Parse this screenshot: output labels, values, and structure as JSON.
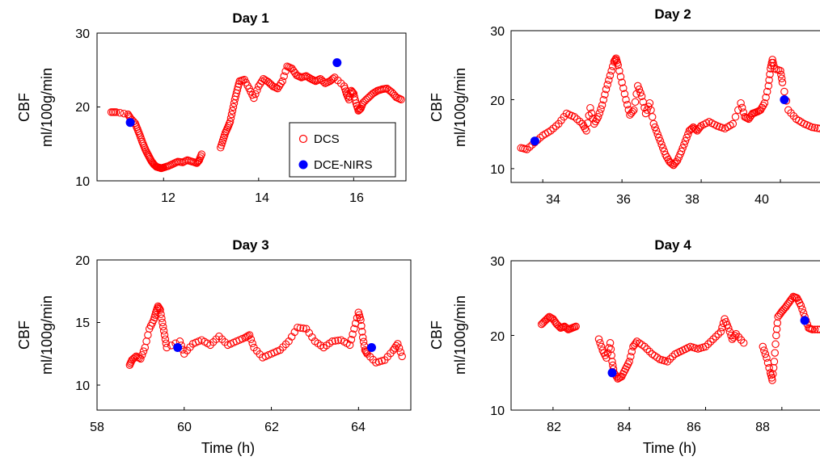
{
  "chart_data": [
    {
      "type": "scatter",
      "title": "Day 1",
      "ylabel": "CBF",
      "ylabel2": "ml/100g/min",
      "xlabel": "",
      "xlim": [
        10.6,
        17.1
      ],
      "ylim": [
        10,
        30
      ],
      "xticks": [
        "12",
        "14",
        "16"
      ],
      "yticks": [
        "10",
        "20",
        "30"
      ],
      "legend": {
        "position": "inside-lower-right",
        "entries": [
          "DCS",
          "DCE-NIRS"
        ]
      },
      "series": [
        {
          "name": "DCS",
          "marker": "open-circle",
          "color": "#ff0000",
          "x": [
            10.9,
            11.0,
            11.25,
            11.3,
            11.4,
            11.45,
            11.5,
            11.55,
            11.6,
            11.65,
            11.7,
            11.75,
            11.8,
            11.85,
            11.9,
            11.95,
            12.0,
            12.1,
            12.2,
            12.3,
            12.4,
            12.5,
            12.6,
            12.7,
            12.75,
            12.8,
            13.2,
            13.25,
            13.3,
            13.35,
            13.4,
            13.45,
            13.5,
            13.55,
            13.6,
            13.7,
            13.8,
            13.9,
            14.0,
            14.1,
            14.2,
            14.3,
            14.4,
            14.5,
            14.6,
            14.7,
            14.8,
            14.9,
            15.0,
            15.1,
            15.2,
            15.3,
            15.4,
            15.5,
            15.6,
            15.8,
            15.85,
            15.9,
            15.95,
            16.0,
            16.05,
            16.1,
            16.15,
            16.2,
            16.3,
            16.4,
            16.5,
            16.6,
            16.7,
            16.8,
            16.9,
            17.0
          ],
          "y": [
            19.3,
            19.3,
            19.0,
            18.5,
            17.8,
            17.0,
            16.2,
            15.3,
            14.5,
            13.8,
            13.2,
            12.6,
            12.2,
            11.9,
            11.8,
            11.7,
            11.8,
            12.0,
            12.3,
            12.6,
            12.5,
            12.8,
            12.6,
            12.4,
            12.8,
            13.6,
            14.5,
            15.5,
            16.5,
            17.2,
            18.0,
            19.5,
            21.0,
            22.3,
            23.5,
            23.7,
            22.5,
            21.2,
            22.8,
            23.8,
            23.4,
            22.8,
            22.5,
            23.5,
            25.5,
            25.2,
            24.3,
            24.0,
            24.2,
            23.8,
            23.5,
            23.8,
            23.2,
            23.5,
            24.0,
            22.8,
            21.8,
            21.0,
            22.2,
            21.8,
            20.5,
            19.5,
            19.8,
            20.6,
            21.2,
            21.8,
            22.2,
            22.4,
            22.5,
            22.0,
            21.3,
            21.0
          ]
        },
        {
          "name": "DCE-NIRS",
          "marker": "filled-circle",
          "color": "#0000ff",
          "x": [
            11.3,
            15.65
          ],
          "y": [
            17.9,
            26.0
          ]
        }
      ]
    },
    {
      "type": "scatter",
      "title": "Day 2",
      "ylabel": "CBF",
      "ylabel2": "ml/100g/min",
      "xlabel": "",
      "xlim": [
        33.2,
        41.0
      ],
      "ylim": [
        8,
        30
      ],
      "xticks": [
        "34",
        "36",
        "38",
        "40"
      ],
      "yticks": [
        "10",
        "20",
        "30"
      ],
      "series": [
        {
          "name": "DCS",
          "marker": "open-circle",
          "color": "#ff0000",
          "x": [
            33.45,
            33.6,
            33.8,
            34.0,
            34.2,
            34.4,
            34.6,
            34.8,
            35.0,
            35.1,
            35.2,
            35.3,
            35.4,
            35.5,
            35.6,
            35.7,
            35.8,
            35.85,
            35.9,
            36.0,
            36.1,
            36.2,
            36.3,
            36.4,
            36.5,
            36.6,
            36.7,
            36.8,
            36.9,
            37.0,
            37.1,
            37.2,
            37.3,
            37.4,
            37.5,
            37.6,
            37.7,
            37.8,
            37.9,
            38.0,
            38.2,
            38.4,
            38.6,
            38.8,
            39.0,
            39.1,
            39.2,
            39.3,
            39.4,
            39.5,
            39.6,
            39.7,
            39.75,
            39.8,
            39.85,
            40.0,
            40.05,
            40.2,
            40.4,
            40.6,
            40.8,
            41.0
          ],
          "y": [
            13.0,
            12.8,
            13.8,
            14.8,
            15.5,
            16.5,
            18.0,
            17.5,
            16.5,
            15.5,
            18.8,
            16.5,
            17.5,
            19.2,
            21.5,
            23.5,
            25.5,
            26.0,
            25.0,
            22.5,
            20.0,
            17.8,
            18.5,
            22.0,
            20.5,
            18.0,
            19.5,
            16.5,
            15.0,
            13.5,
            12.0,
            11.0,
            10.5,
            11.2,
            12.5,
            14.0,
            15.5,
            16.0,
            15.5,
            16.2,
            16.8,
            16.2,
            15.8,
            16.5,
            19.5,
            17.5,
            17.2,
            18.0,
            18.2,
            18.5,
            19.5,
            22.0,
            24.5,
            25.8,
            24.5,
            24.2,
            22.5,
            18.5,
            17.2,
            16.5,
            16.0,
            15.8
          ]
        },
        {
          "name": "DCE-NIRS",
          "marker": "filled-circle",
          "color": "#0000ff",
          "x": [
            33.8,
            40.1
          ],
          "y": [
            14.0,
            20.0
          ]
        }
      ]
    },
    {
      "type": "scatter",
      "title": "Day 3",
      "ylabel": "CBF",
      "ylabel2": "ml/100g/min",
      "xlabel": "Time (h)",
      "xlim": [
        58,
        65.2
      ],
      "ylim": [
        8,
        20
      ],
      "xticks": [
        "58",
        "60",
        "62",
        "64"
      ],
      "yticks": [
        "10",
        "15",
        "20"
      ],
      "series": [
        {
          "name": "DCS",
          "marker": "open-circle",
          "color": "#ff0000",
          "x": [
            58.75,
            58.8,
            58.9,
            59.0,
            59.1,
            59.2,
            59.3,
            59.35,
            59.4,
            59.45,
            59.5,
            59.55,
            59.6,
            59.9,
            60.0,
            60.2,
            60.4,
            60.6,
            60.8,
            61.0,
            61.2,
            61.4,
            61.5,
            61.6,
            61.8,
            62.0,
            62.2,
            62.4,
            62.6,
            62.8,
            63.0,
            63.2,
            63.4,
            63.6,
            63.8,
            63.9,
            64.0,
            64.05,
            64.1,
            64.15,
            64.2,
            64.4,
            64.6,
            64.8,
            64.9,
            65.0
          ],
          "y": [
            11.6,
            12.0,
            12.3,
            12.1,
            13.0,
            14.5,
            15.2,
            15.8,
            16.3,
            16.0,
            15.0,
            14.0,
            13.0,
            13.5,
            12.5,
            13.3,
            13.6,
            13.2,
            13.9,
            13.2,
            13.5,
            13.8,
            14.0,
            13.0,
            12.2,
            12.5,
            12.8,
            13.5,
            14.6,
            14.5,
            13.5,
            13.0,
            13.5,
            13.6,
            13.2,
            14.5,
            15.8,
            15.2,
            13.8,
            12.8,
            12.5,
            11.8,
            12.0,
            12.8,
            13.3,
            12.3
          ]
        },
        {
          "name": "DCE-NIRS",
          "marker": "filled-circle",
          "color": "#0000ff",
          "x": [
            59.85,
            64.3
          ],
          "y": [
            13.0,
            13.0
          ]
        }
      ]
    },
    {
      "type": "scatter",
      "title": "Day 4",
      "ylabel": "CBF",
      "ylabel2": "ml/100g/min",
      "xlabel": "Time (h)",
      "xlim": [
        80.9,
        89.0
      ],
      "ylim": [
        10,
        30
      ],
      "xticks": [
        "82",
        "84",
        "86",
        "88"
      ],
      "yticks": [
        "10",
        "20",
        "30"
      ],
      "series": [
        {
          "name": "DCS",
          "marker": "open-circle",
          "color": "#ff0000",
          "x": [
            81.7,
            81.8,
            81.9,
            82.0,
            82.1,
            82.2,
            82.3,
            82.4,
            82.5,
            82.6,
            83.2,
            83.3,
            83.4,
            83.5,
            83.55,
            83.6,
            83.7,
            83.8,
            83.9,
            84.0,
            84.1,
            84.2,
            84.4,
            84.6,
            84.8,
            85.0,
            85.2,
            85.4,
            85.6,
            85.8,
            86.0,
            86.2,
            86.4,
            86.5,
            86.6,
            86.7,
            86.8,
            87.0,
            87.5,
            87.6,
            87.7,
            87.75,
            87.8,
            87.85,
            87.9,
            88.0,
            88.1,
            88.2,
            88.3,
            88.4,
            88.5,
            88.6,
            88.7,
            88.8,
            89.0
          ],
          "y": [
            21.5,
            22.0,
            22.5,
            22.2,
            21.5,
            21.0,
            21.2,
            20.8,
            21.0,
            21.2,
            19.5,
            18.0,
            17.0,
            19.0,
            16.5,
            15.0,
            14.2,
            14.5,
            15.5,
            16.5,
            18.5,
            19.2,
            18.5,
            17.5,
            16.8,
            16.5,
            17.5,
            18.0,
            18.5,
            18.2,
            18.5,
            19.5,
            20.5,
            22.2,
            21.0,
            19.5,
            20.2,
            19.0,
            18.5,
            17.0,
            15.0,
            14.0,
            16.5,
            20.0,
            22.5,
            23.2,
            23.8,
            24.5,
            25.2,
            25.0,
            24.0,
            22.5,
            21.0,
            20.8,
            20.8
          ]
        },
        {
          "name": "DCE-NIRS",
          "marker": "filled-circle",
          "color": "#0000ff",
          "x": [
            83.55,
            88.6
          ],
          "y": [
            15.0,
            22.0
          ]
        }
      ]
    }
  ]
}
